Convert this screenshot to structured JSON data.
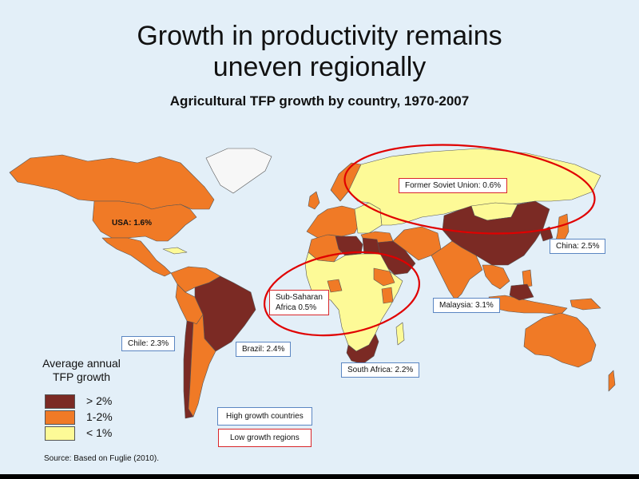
{
  "title_line1": "Growth in productivity remains",
  "title_line2": "uneven regionally",
  "subtitle": "Agricultural TFP growth by country, 1970-2007",
  "colors": {
    "high": "#7b2a24",
    "mid": "#f07a26",
    "low": "#fdfa97",
    "ocean": "#e3eff8",
    "ring": "#e00000",
    "box_blue": "#5b86c2"
  },
  "labels": {
    "usa": "USA:  1.6%",
    "fsu": "Former Soviet Union: 0.6%",
    "china": "China: 2.5%",
    "ssa1": "Sub-Saharan",
    "ssa2": "Africa 0.5%",
    "malaysia": "Malaysia: 3.1%",
    "chile": "Chile: 2.3%",
    "brazil": "Brazil: 2.4%",
    "south_africa": "South Africa: 2.2%"
  },
  "legend": {
    "title1": "Average annual",
    "title2": "TFP growth",
    "items": [
      "> 2%",
      "1-2%",
      "< 1%"
    ],
    "high_growth": "High growth countries",
    "low_growth": "Low growth regions"
  },
  "source": "Source: Based on Fuglie (2010)."
}
